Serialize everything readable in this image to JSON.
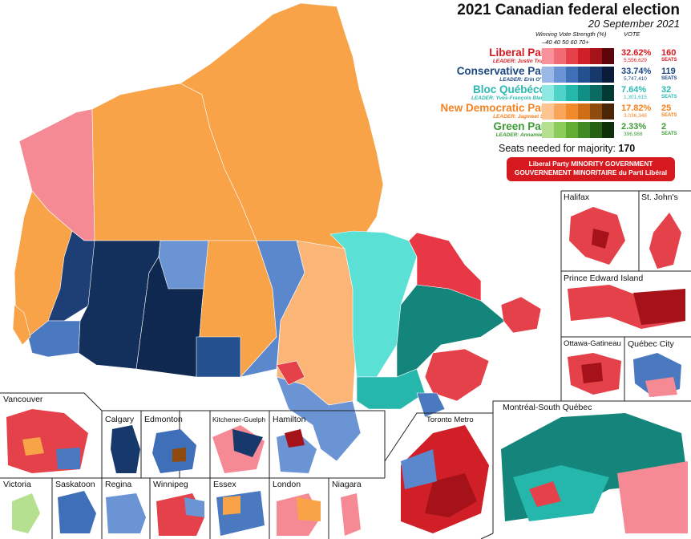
{
  "title": "2021 Canadian federal election",
  "date": "20 September 2021",
  "legend_header": {
    "strength": "Winning Vote Strength (%)",
    "vote": "VOTE",
    "ticks": "–40  40   50   60   70+"
  },
  "parties": [
    {
      "name": "Liberal Party",
      "leader": "LEADER: Justin Trudeau",
      "pct": "32.62%",
      "votes": "5,556,629",
      "seats": "160",
      "seats_label": "SEATS",
      "color": "#d71920",
      "shades": [
        "#f7919a",
        "#f06b73",
        "#e5414b",
        "#d11f27",
        "#a6121a",
        "#5c060b"
      ]
    },
    {
      "name": "Conservative Party",
      "leader": "LEADER: Erin O'Toole",
      "pct": "33.74%",
      "votes": "5,747,410",
      "seats": "119",
      "seats_label": "SEATS",
      "color": "#1a4782",
      "shades": [
        "#9bb8e6",
        "#6a94d4",
        "#3f6fb8",
        "#24508f",
        "#16386b",
        "#0a1c3a"
      ]
    },
    {
      "name": "Bloc Québécois",
      "leader": "LEADER: Yves-François Blanchet",
      "pct": "7.64%",
      "votes": "1,301,615",
      "seats": "32",
      "seats_label": "SEATS",
      "color": "#2ab8b0",
      "shades": [
        "#8fe8e2",
        "#4fd2c8",
        "#25b7ac",
        "#128f85",
        "#0a6b62",
        "#033a34"
      ]
    },
    {
      "name": "New Democratic Party",
      "leader": "LEADER: Jagmeet Singh",
      "pct": "17.82%",
      "votes": "3,036,348",
      "seats": "25",
      "seats_label": "SEATS",
      "color": "#f58220",
      "shades": [
        "#fcc591",
        "#f9a65a",
        "#f08a2b",
        "#cf6c16",
        "#8f4a0e",
        "#4a2607"
      ]
    },
    {
      "name": "Green Party",
      "leader": "LEADER: Annamie Paul",
      "pct": "2.33%",
      "votes": "396,988",
      "seats": "2",
      "seats_label": "SEATS",
      "color": "#3d9b35",
      "shades": [
        "#b5e08f",
        "#8ccc5a",
        "#64ad34",
        "#3f8a22",
        "#266114",
        "#0f3008"
      ]
    }
  ],
  "majority": {
    "label": "Seats needed for majority:",
    "value": "170"
  },
  "banner": {
    "line1": "Liberal Party MINORITY GOVERNMENT",
    "line2": "GOUVERNEMENT MINORITAIRE du Parti Libéral"
  },
  "insets": [
    "Halifax",
    "St. John's",
    "Prince Edward Island",
    "Ottawa-Gatineau",
    "Québec City",
    "Montréal-South Québec",
    "Toronto Metro",
    "Vancouver",
    "Calgary",
    "Edmonton",
    "Kitchener-Guelph",
    "Hamilton",
    "Victoria",
    "Saskatoon",
    "Regina",
    "Winnipeg",
    "Essex",
    "London",
    "Niagara"
  ]
}
